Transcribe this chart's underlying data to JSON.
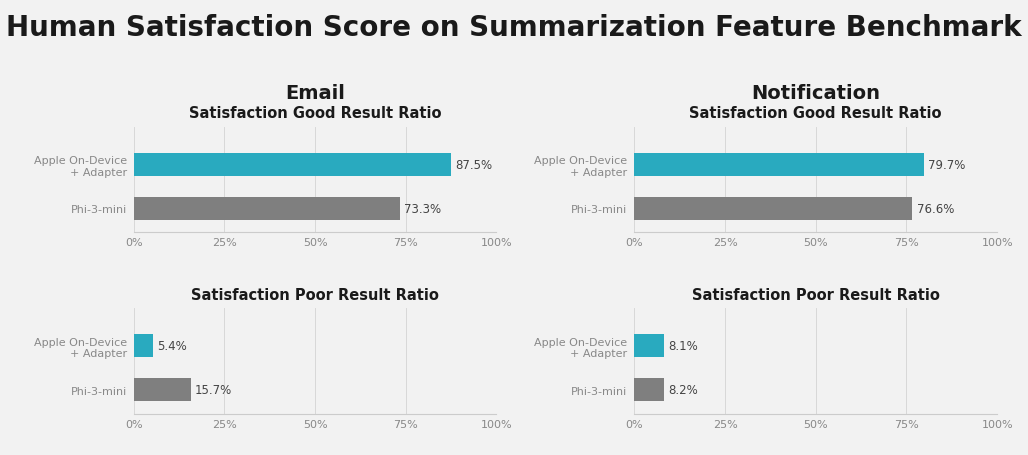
{
  "title": "Human Satisfaction Score on Summarization Feature Benchmark",
  "background_color": "#f2f2f2",
  "bar_color_apple": "#29aabf",
  "bar_color_phi": "#7f7f7f",
  "sections": [
    {
      "col_title": "Email",
      "sub_title_top": "Satisfaction Good Result Ratio",
      "sub_title_bottom": "Satisfaction Poor Result Ratio",
      "good": [
        87.5,
        73.3
      ],
      "poor": [
        5.4,
        15.7
      ]
    },
    {
      "col_title": "Notification",
      "sub_title_top": "Satisfaction Good Result Ratio",
      "sub_title_bottom": "Satisfaction Poor Result Ratio",
      "good": [
        79.7,
        76.6
      ],
      "poor": [
        8.1,
        8.2
      ]
    }
  ],
  "labels": [
    "Apple On-Device\n+ Adapter",
    "Phi-3-mini"
  ],
  "xlim": [
    0,
    100
  ],
  "xticks": [
    0,
    25,
    50,
    75,
    100
  ],
  "xticklabels": [
    "0%",
    "25%",
    "50%",
    "75%",
    "100%"
  ],
  "title_fontsize": 20,
  "col_title_fontsize": 14,
  "sub_title_fontsize": 10.5,
  "label_fontsize": 8,
  "value_fontsize": 8.5,
  "tick_fontsize": 8
}
